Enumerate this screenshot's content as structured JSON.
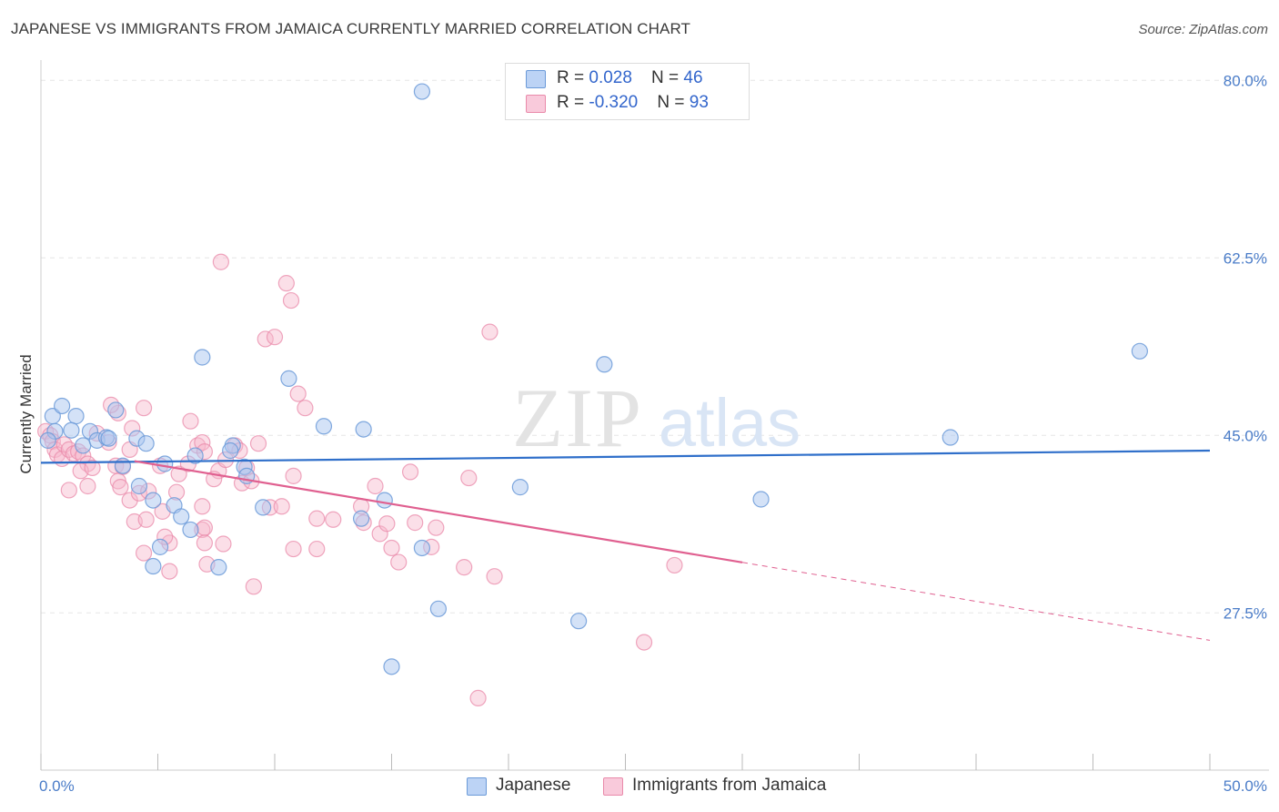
{
  "title": "JAPANESE VS IMMIGRANTS FROM JAMAICA CURRENTLY MARRIED CORRELATION CHART",
  "source": "Source: ZipAtlas.com",
  "watermark": {
    "zip": "ZIP",
    "atlas": "atlas"
  },
  "colors": {
    "japanese_fill": "#a9c6f0",
    "japanese_stroke": "#6b9ad8",
    "japanese_line": "#2f6fca",
    "jamaica_fill": "#f6b9cc",
    "jamaica_stroke": "#e98aaa",
    "jamaica_line": "#e06090",
    "tick_label": "#4a7cc8",
    "grid": "#e6e6e6"
  },
  "legend": {
    "rows": [
      {
        "r_label": "R = ",
        "r_value": "0.028",
        "n_label": "N = ",
        "n_value": "46"
      },
      {
        "r_label": "R = ",
        "r_value": "-0.320",
        "n_label": "N = ",
        "n_value": "93"
      }
    ]
  },
  "bottom_legend": [
    "Japanese",
    "Immigrants from Jamaica"
  ],
  "chart_data": {
    "type": "scatter",
    "title": "JAPANESE VS IMMIGRANTS FROM JAMAICA CURRENTLY MARRIED CORRELATION CHART",
    "xlabel": "",
    "ylabel": "Currently Married",
    "xlim": [
      0,
      50
    ],
    "ylim": [
      12,
      82
    ],
    "x_tick_labels": [
      "0.0%",
      "50.0%"
    ],
    "y_ticks": [
      27.5,
      45.0,
      62.5,
      80.0
    ],
    "y_tick_labels": [
      "27.5%",
      "45.0%",
      "62.5%",
      "80.0%"
    ],
    "grid": true,
    "legend_placement": "top-center",
    "series": [
      {
        "name": "Japanese",
        "r": 0.028,
        "n": 46,
        "trend": {
          "x": [
            0,
            50
          ],
          "y": [
            42.3,
            43.5
          ],
          "dashed_from": null
        },
        "points": [
          [
            0.5,
            46.9
          ],
          [
            0.9,
            47.9
          ],
          [
            1.5,
            46.9
          ],
          [
            0.6,
            45.4
          ],
          [
            1.3,
            45.5
          ],
          [
            2.1,
            45.4
          ],
          [
            1.8,
            44.0
          ],
          [
            2.4,
            44.5
          ],
          [
            2.8,
            44.8
          ],
          [
            2.9,
            44.7
          ],
          [
            3.2,
            47.5
          ],
          [
            4.1,
            44.7
          ],
          [
            4.5,
            44.2
          ],
          [
            3.5,
            42.0
          ],
          [
            6.9,
            52.7
          ],
          [
            4.2,
            40.0
          ],
          [
            5.3,
            42.2
          ],
          [
            6.6,
            43.0
          ],
          [
            8.2,
            44.0
          ],
          [
            8.1,
            43.5
          ],
          [
            8.7,
            41.9
          ],
          [
            8.8,
            41.0
          ],
          [
            5.7,
            38.1
          ],
          [
            4.8,
            38.6
          ],
          [
            6.0,
            37.0
          ],
          [
            6.4,
            35.7
          ],
          [
            5.1,
            34.0
          ],
          [
            4.8,
            32.1
          ],
          [
            7.6,
            32.0
          ],
          [
            9.5,
            37.9
          ],
          [
            10.6,
            50.6
          ],
          [
            12.1,
            45.9
          ],
          [
            13.8,
            45.6
          ],
          [
            13.7,
            36.8
          ],
          [
            14.7,
            38.6
          ],
          [
            16.3,
            78.9
          ],
          [
            16.3,
            33.9
          ],
          [
            17.0,
            27.9
          ],
          [
            15.0,
            22.2
          ],
          [
            20.5,
            39.9
          ],
          [
            23.0,
            26.7
          ],
          [
            24.1,
            52.0
          ],
          [
            30.8,
            38.7
          ],
          [
            38.9,
            44.8
          ],
          [
            47.0,
            53.3
          ],
          [
            0.3,
            44.5
          ]
        ]
      },
      {
        "name": "Immigrants from Jamaica",
        "r": -0.32,
        "n": 93,
        "trend": {
          "x": [
            0,
            50
          ],
          "y": [
            44.0,
            24.8
          ],
          "dashed_from": 30.0
        },
        "points": [
          [
            0.2,
            45.4
          ],
          [
            0.4,
            45.0
          ],
          [
            0.5,
            44.4
          ],
          [
            0.6,
            43.6
          ],
          [
            0.7,
            43.1
          ],
          [
            0.9,
            42.7
          ],
          [
            1.0,
            44.1
          ],
          [
            1.2,
            43.6
          ],
          [
            1.4,
            43.2
          ],
          [
            1.6,
            43.4
          ],
          [
            1.8,
            43.0
          ],
          [
            2.0,
            42.2
          ],
          [
            1.7,
            41.5
          ],
          [
            2.2,
            41.8
          ],
          [
            1.2,
            39.6
          ],
          [
            2.0,
            40.0
          ],
          [
            2.4,
            45.2
          ],
          [
            2.9,
            44.3
          ],
          [
            3.2,
            42.0
          ],
          [
            3.5,
            41.9
          ],
          [
            3.8,
            43.6
          ],
          [
            3.3,
            47.2
          ],
          [
            3.0,
            48.0
          ],
          [
            3.9,
            45.7
          ],
          [
            4.4,
            47.7
          ],
          [
            3.3,
            40.5
          ],
          [
            3.4,
            39.9
          ],
          [
            3.8,
            38.6
          ],
          [
            4.2,
            39.3
          ],
          [
            4.6,
            39.5
          ],
          [
            5.2,
            37.5
          ],
          [
            4.0,
            36.5
          ],
          [
            4.5,
            36.7
          ],
          [
            5.5,
            34.4
          ],
          [
            5.3,
            35.0
          ],
          [
            4.4,
            33.4
          ],
          [
            5.5,
            31.6
          ],
          [
            5.8,
            39.4
          ],
          [
            5.1,
            42.0
          ],
          [
            5.9,
            41.2
          ],
          [
            6.3,
            42.2
          ],
          [
            6.4,
            46.4
          ],
          [
            6.7,
            44.0
          ],
          [
            6.9,
            44.3
          ],
          [
            7.0,
            43.4
          ],
          [
            7.6,
            41.5
          ],
          [
            7.4,
            40.7
          ],
          [
            6.9,
            38.0
          ],
          [
            6.9,
            35.7
          ],
          [
            7.0,
            35.9
          ],
          [
            7.0,
            34.4
          ],
          [
            7.1,
            32.3
          ],
          [
            7.8,
            34.3
          ],
          [
            7.9,
            42.6
          ],
          [
            8.3,
            44.0
          ],
          [
            8.5,
            43.5
          ],
          [
            8.8,
            41.8
          ],
          [
            8.6,
            40.3
          ],
          [
            9.0,
            40.5
          ],
          [
            9.3,
            44.2
          ],
          [
            9.8,
            37.9
          ],
          [
            9.1,
            30.1
          ],
          [
            10.3,
            38.0
          ],
          [
            10.8,
            41.0
          ],
          [
            11.0,
            49.1
          ],
          [
            11.3,
            47.7
          ],
          [
            11.8,
            36.8
          ],
          [
            11.8,
            33.8
          ],
          [
            10.8,
            33.8
          ],
          [
            12.5,
            36.7
          ],
          [
            13.7,
            38.0
          ],
          [
            13.8,
            36.4
          ],
          [
            14.3,
            40.0
          ],
          [
            14.5,
            35.3
          ],
          [
            14.8,
            36.3
          ],
          [
            15.0,
            33.9
          ],
          [
            15.3,
            32.5
          ],
          [
            15.8,
            41.4
          ],
          [
            16.0,
            36.4
          ],
          [
            16.7,
            34.0
          ],
          [
            16.9,
            35.9
          ],
          [
            18.1,
            32.0
          ],
          [
            18.3,
            40.8
          ],
          [
            19.2,
            55.2
          ],
          [
            19.4,
            31.1
          ],
          [
            18.7,
            19.1
          ],
          [
            25.8,
            24.6
          ],
          [
            27.1,
            32.2
          ],
          [
            7.7,
            62.1
          ],
          [
            10.5,
            60.0
          ],
          [
            10.7,
            58.3
          ],
          [
            9.6,
            54.5
          ],
          [
            10.0,
            54.7
          ]
        ]
      }
    ]
  }
}
